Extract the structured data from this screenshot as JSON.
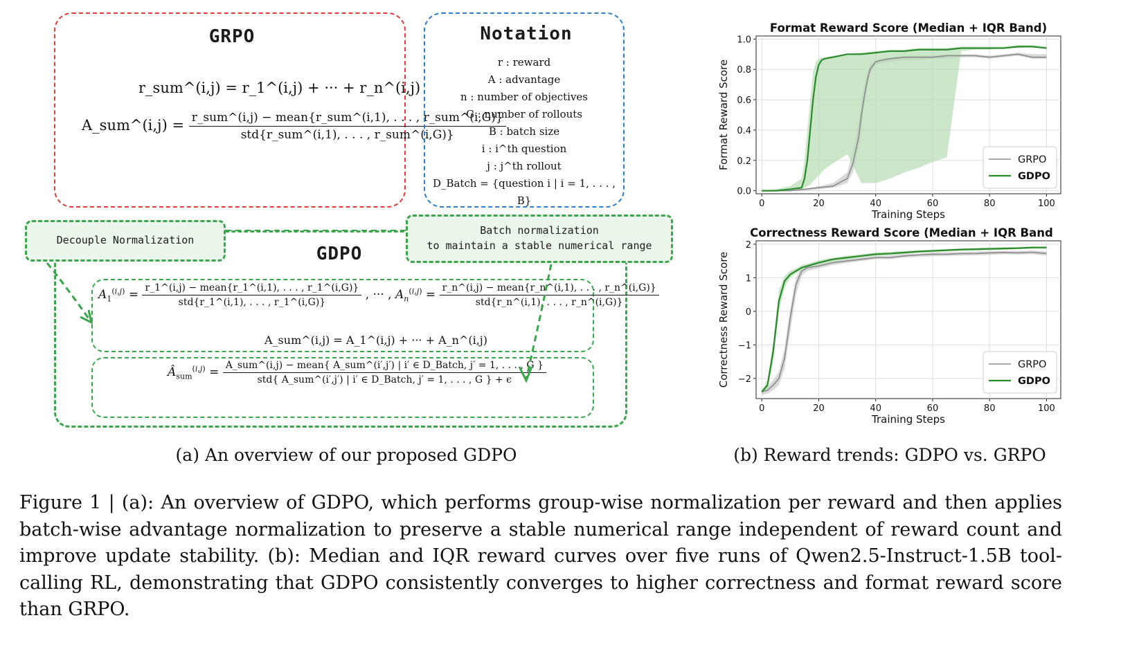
{
  "panel_a": {
    "grpo": {
      "title": "GRPO",
      "eq_sum": "r_sum^(i,j) = r_1^(i,j) + ··· + r_n^(i,j)",
      "eq_adv_lhs": "A_sum^(i,j) =",
      "eq_adv_num": "r_sum^(i,j) − mean{r_sum^(i,1), . . . , r_sum^(i,G)}",
      "eq_adv_den": "std{r_sum^(i,1), . . . , r_sum^(i,G)}"
    },
    "notation": {
      "title": "Notation",
      "lines": [
        "r : reward",
        "A : advantage",
        "n : number of objectives",
        "G : number of rollouts",
        "B : batch size",
        "i : i^th question",
        "j : j^th rollout",
        "D_Batch = {question i | i = 1, . . . , B}"
      ]
    },
    "gdpo": {
      "title": "GDPO",
      "callout_left": "Decouple Normalization",
      "callout_right_line1": "Batch normalization",
      "callout_right_line2": "to maintain a stable numerical range",
      "eq1_num": "r_1^(i,j) − mean{r_1^(i,1), . . . , r_1^(i,G)}",
      "eq1_den": "std{r_1^(i,1), . . . , r_1^(i,G)}",
      "eqn_num": "r_n^(i,j) − mean{r_n^(i,1), . . . , r_n^(i,G)}",
      "eqn_den": "std{r_n^(i,1), . . . , r_n^(i,G)}",
      "eq_sum": "A_sum^(i,j) = A_1^(i,j) + ··· + A_n^(i,j)",
      "eq_hat_num": "A_sum^(i,j) − mean{ A_sum^(i′,j′) | i′ ∈ D_Batch, j′ = 1, . . . , G }",
      "eq_hat_den": "std{ A_sum^(i′,j′) | i′ ∈ D_Batch, j′ = 1, . . . , G } + ϵ"
    },
    "subcaption": "(a) An overview of our proposed GDPO"
  },
  "panel_b": {
    "subcaption": "(b) Reward trends: GDPO vs. GRPO"
  },
  "figure_caption": "Figure 1 | (a): An overview of GDPO, which performs group-wise normalization per reward and then applies batch-wise advantage normalization to preserve a stable numerical range independent of reward count and improve update stability. (b): Median and IQR reward curves over five runs of Qwen2.5-Instruct-1.5B tool-calling RL, demonstrating that GDPO consistently converges to higher correctness and format reward score than GRPO.",
  "colors": {
    "gdpo_line": "#2a8a2a",
    "gdpo_band": "#b7dcb3",
    "grpo_line": "#8a8a8a",
    "grpo_band": "#c9c9c9",
    "red_box": "#e03b3b",
    "blue_box": "#2f7fc8",
    "green_box": "#3aa54a"
  },
  "chart_data": [
    {
      "type": "line",
      "title": "Format Reward Score (Median + IQR Band)",
      "xlabel": "Training Steps",
      "ylabel": "Format Reward Score",
      "xlim": [
        -2,
        105
      ],
      "ylim": [
        -0.02,
        1.02
      ],
      "xticks": [
        "0",
        "20",
        "40",
        "60",
        "80",
        "100"
      ],
      "yticks": [
        "0.0",
        "0.2",
        "0.4",
        "0.6",
        "0.8",
        "1.0"
      ],
      "grid": true,
      "legend_position": "lower-right",
      "series": [
        {
          "name": "GRPO",
          "x": [
            0,
            5,
            10,
            15,
            20,
            25,
            30,
            32,
            34,
            35,
            36,
            37,
            38,
            40,
            42,
            45,
            50,
            55,
            60,
            65,
            70,
            75,
            80,
            85,
            90,
            95,
            100
          ],
          "y": [
            0.0,
            0.0,
            0.0,
            0.01,
            0.02,
            0.03,
            0.08,
            0.18,
            0.35,
            0.5,
            0.62,
            0.72,
            0.8,
            0.85,
            0.86,
            0.87,
            0.88,
            0.88,
            0.88,
            0.89,
            0.89,
            0.89,
            0.88,
            0.89,
            0.9,
            0.88,
            0.88
          ],
          "q1": [
            0.0,
            0.0,
            0.0,
            0.0,
            0.01,
            0.02,
            0.05,
            0.12,
            0.28,
            0.42,
            0.56,
            0.68,
            0.77,
            0.83,
            0.84,
            0.85,
            0.86,
            0.86,
            0.87,
            0.87,
            0.88,
            0.88,
            0.87,
            0.88,
            0.89,
            0.87,
            0.87
          ],
          "q3": [
            0.0,
            0.0,
            0.0,
            0.01,
            0.03,
            0.05,
            0.12,
            0.26,
            0.45,
            0.6,
            0.7,
            0.78,
            0.83,
            0.86,
            0.87,
            0.88,
            0.89,
            0.89,
            0.89,
            0.9,
            0.9,
            0.9,
            0.89,
            0.9,
            0.91,
            0.9,
            0.9
          ]
        },
        {
          "name": "GDPO",
          "x": [
            0,
            5,
            10,
            14,
            15,
            16,
            17,
            18,
            19,
            20,
            21,
            22,
            25,
            30,
            35,
            40,
            45,
            50,
            55,
            60,
            65,
            70,
            75,
            80,
            85,
            90,
            95,
            100
          ],
          "y": [
            0.0,
            0.0,
            0.01,
            0.02,
            0.08,
            0.2,
            0.4,
            0.6,
            0.75,
            0.83,
            0.86,
            0.87,
            0.88,
            0.9,
            0.9,
            0.91,
            0.92,
            0.92,
            0.93,
            0.93,
            0.93,
            0.94,
            0.94,
            0.94,
            0.94,
            0.95,
            0.95,
            0.94
          ],
          "q1": [
            0.0,
            0.0,
            0.0,
            0.01,
            0.02,
            0.03,
            0.04,
            0.06,
            0.08,
            0.1,
            0.12,
            0.14,
            0.18,
            0.24,
            0.05,
            0.05,
            0.08,
            0.12,
            0.15,
            0.19,
            0.22,
            0.92,
            0.93,
            0.93,
            0.94,
            0.94,
            0.95,
            0.94
          ],
          "q3": [
            0.0,
            0.01,
            0.03,
            0.08,
            0.2,
            0.4,
            0.6,
            0.78,
            0.85,
            0.87,
            0.88,
            0.88,
            0.89,
            0.9,
            0.91,
            0.92,
            0.93,
            0.93,
            0.94,
            0.94,
            0.94,
            0.95,
            0.95,
            0.95,
            0.95,
            0.96,
            0.96,
            0.95
          ]
        }
      ]
    },
    {
      "type": "line",
      "title": "Correctness Reward Score (Median + IQR Band",
      "xlabel": "Training Steps",
      "ylabel": "Correctness Reward Score",
      "xlim": [
        -2,
        105
      ],
      "ylim": [
        -2.6,
        2.1
      ],
      "xticks": [
        "0",
        "20",
        "40",
        "60",
        "80",
        "100"
      ],
      "yticks": [
        "−2",
        "−1",
        "0",
        "1",
        "2"
      ],
      "grid": true,
      "legend_position": "lower-right",
      "series": [
        {
          "name": "GRPO",
          "x": [
            0,
            2,
            4,
            6,
            8,
            10,
            12,
            14,
            16,
            20,
            25,
            30,
            35,
            40,
            45,
            50,
            55,
            60,
            65,
            70,
            75,
            80,
            85,
            90,
            95,
            100
          ],
          "y": [
            -2.4,
            -2.35,
            -2.2,
            -2.0,
            -1.4,
            -0.2,
            0.8,
            1.2,
            1.3,
            1.35,
            1.45,
            1.5,
            1.55,
            1.6,
            1.6,
            1.65,
            1.68,
            1.7,
            1.7,
            1.72,
            1.72,
            1.74,
            1.75,
            1.74,
            1.76,
            1.72
          ],
          "q1": [
            -2.5,
            -2.45,
            -2.35,
            -2.2,
            -1.7,
            -0.6,
            0.5,
            1.05,
            1.2,
            1.28,
            1.38,
            1.44,
            1.5,
            1.55,
            1.55,
            1.6,
            1.62,
            1.64,
            1.65,
            1.66,
            1.67,
            1.68,
            1.7,
            1.69,
            1.7,
            1.66
          ],
          "q3": [
            -2.3,
            -2.25,
            -2.05,
            -1.8,
            -1.1,
            0.1,
            1.0,
            1.3,
            1.38,
            1.42,
            1.5,
            1.56,
            1.6,
            1.65,
            1.66,
            1.7,
            1.72,
            1.75,
            1.76,
            1.77,
            1.78,
            1.79,
            1.8,
            1.8,
            1.81,
            1.78
          ]
        },
        {
          "name": "GDPO",
          "x": [
            0,
            2,
            4,
            6,
            8,
            10,
            12,
            14,
            16,
            20,
            25,
            30,
            35,
            40,
            45,
            50,
            55,
            60,
            65,
            70,
            75,
            80,
            85,
            90,
            95,
            100
          ],
          "y": [
            -2.4,
            -2.2,
            -1.2,
            0.3,
            0.9,
            1.1,
            1.2,
            1.3,
            1.35,
            1.45,
            1.55,
            1.6,
            1.65,
            1.7,
            1.72,
            1.75,
            1.78,
            1.8,
            1.82,
            1.84,
            1.85,
            1.86,
            1.87,
            1.88,
            1.9,
            1.9
          ],
          "q1": [
            -2.45,
            -2.3,
            -1.5,
            0.0,
            0.7,
            1.0,
            1.12,
            1.22,
            1.28,
            1.38,
            1.48,
            1.54,
            1.6,
            1.65,
            1.67,
            1.7,
            1.74,
            1.76,
            1.78,
            1.8,
            1.81,
            1.82,
            1.83,
            1.85,
            1.86,
            1.86
          ],
          "q3": [
            -2.35,
            -2.05,
            -0.9,
            0.6,
            1.05,
            1.2,
            1.28,
            1.38,
            1.42,
            1.52,
            1.6,
            1.66,
            1.7,
            1.75,
            1.77,
            1.8,
            1.82,
            1.84,
            1.86,
            1.87,
            1.88,
            1.9,
            1.91,
            1.92,
            1.93,
            1.93
          ]
        }
      ]
    }
  ]
}
